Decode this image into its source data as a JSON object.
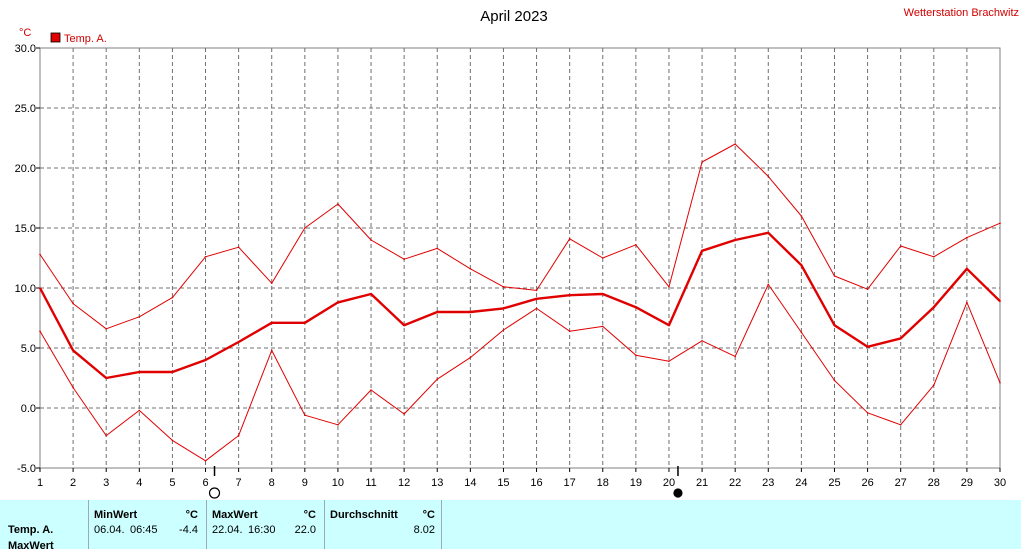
{
  "header": {
    "title": "April 2023",
    "station": "Wetterstation Brachwitz",
    "unit": "°C"
  },
  "chart_data": {
    "type": "line",
    "title": "April 2023",
    "ylabel": "°C",
    "xlabel": "",
    "ylim": [
      -5,
      30
    ],
    "xlim": [
      1,
      30
    ],
    "grid": true,
    "legend_position": "top-left",
    "x_ticks": [
      "1",
      "2",
      "3",
      "4",
      "5",
      "6",
      "7",
      "8",
      "9",
      "10",
      "11",
      "12",
      "13",
      "14",
      "15",
      "16",
      "17",
      "18",
      "19",
      "20",
      "21",
      "22",
      "23",
      "24",
      "25",
      "26",
      "27",
      "28",
      "29",
      "30"
    ],
    "y_ticks": [
      "30.0",
      "25.0",
      "20.0",
      "15.0",
      "10.0",
      "5.0",
      "0.0",
      "-5.0"
    ],
    "legend": [
      "Temp. A."
    ],
    "x": [
      1,
      2,
      3,
      4,
      5,
      6,
      7,
      8,
      9,
      10,
      11,
      12,
      13,
      14,
      15,
      16,
      17,
      18,
      19,
      20,
      21,
      22,
      23,
      24,
      25,
      26,
      27,
      28,
      29,
      30
    ],
    "series": [
      {
        "name": "Temp. A.",
        "role": "mean",
        "color": "#e00000",
        "values": [
          10.0,
          4.8,
          2.5,
          3.0,
          3.0,
          4.0,
          5.5,
          7.1,
          7.1,
          8.8,
          9.5,
          6.9,
          8.0,
          8.0,
          8.3,
          9.1,
          9.4,
          9.5,
          8.4,
          6.9,
          13.1,
          14.0,
          14.6,
          11.9,
          6.9,
          5.1,
          5.8,
          8.4,
          11.6,
          8.9
        ]
      },
      {
        "role": "max",
        "color": "#e00000",
        "values": [
          12.8,
          8.7,
          6.6,
          7.6,
          9.2,
          12.6,
          13.4,
          10.4,
          15.0,
          17.0,
          14.0,
          12.4,
          13.3,
          11.6,
          10.1,
          9.8,
          14.1,
          12.5,
          13.6,
          10.1,
          20.5,
          22.0,
          19.3,
          16.0,
          11.0,
          9.9,
          13.5,
          12.6,
          14.2,
          15.4
        ]
      },
      {
        "role": "min",
        "color": "#e00000",
        "values": [
          6.4,
          1.7,
          -2.3,
          -0.2,
          -2.7,
          -4.4,
          -2.3,
          4.8,
          -0.6,
          -1.4,
          1.5,
          -0.5,
          2.4,
          4.2,
          6.5,
          8.3,
          6.4,
          6.8,
          4.4,
          3.9,
          5.6,
          4.3,
          10.3,
          6.3,
          2.3,
          -0.4,
          -1.4,
          1.9,
          8.8,
          2.1
        ]
      }
    ],
    "moon_markers": [
      {
        "day": 6,
        "phase": "full-moon"
      },
      {
        "day": 20,
        "phase": "new-moon"
      }
    ]
  },
  "summary": {
    "row_label": "Temp. A.",
    "row_label2": "MaxWert",
    "min": {
      "label": "MinWert",
      "unit": "°C",
      "date": "06.04.",
      "time": "06:45",
      "value": "-4.4"
    },
    "max": {
      "label": "MaxWert",
      "unit": "°C",
      "date": "22.04.",
      "time": "16:30",
      "value": "22.0"
    },
    "avg": {
      "label": "Durchschnitt",
      "unit": "°C",
      "value": "8.02"
    }
  }
}
